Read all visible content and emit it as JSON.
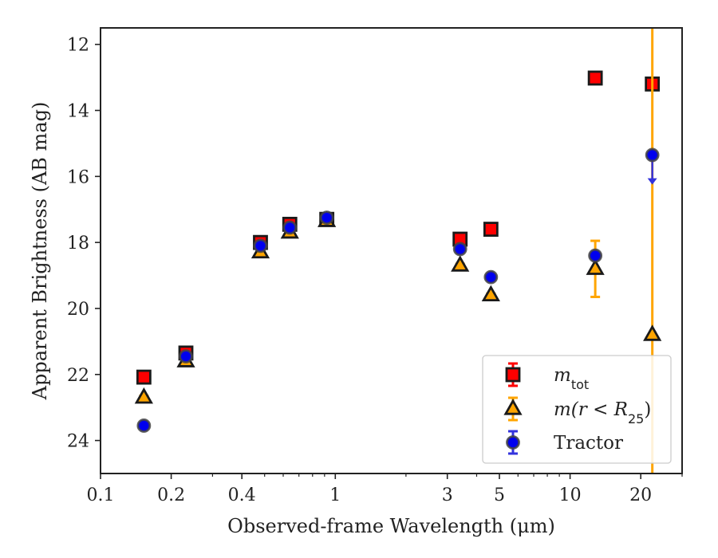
{
  "chart_data": {
    "type": "scatter",
    "title": "",
    "xlabel": "Observed-frame Wavelength (μm)",
    "ylabel": "Apparent Brightness (AB mag)",
    "xscale": "log",
    "xlim": [
      0.1,
      30
    ],
    "ylim": [
      25,
      11.5
    ],
    "y_inverted": true,
    "grid": false,
    "legend_position": "lower-right",
    "xticks": [
      {
        "value": 0.1,
        "label": "0.1"
      },
      {
        "value": 0.2,
        "label": "0.2"
      },
      {
        "value": 0.4,
        "label": "0.4"
      },
      {
        "value": 1,
        "label": "1"
      },
      {
        "value": 3,
        "label": "3"
      },
      {
        "value": 5,
        "label": "5"
      },
      {
        "value": 10,
        "label": "10"
      },
      {
        "value": 20,
        "label": "20"
      }
    ],
    "yticks": [
      {
        "value": 12,
        "label": "12"
      },
      {
        "value": 14,
        "label": "14"
      },
      {
        "value": 16,
        "label": "16"
      },
      {
        "value": 18,
        "label": "18"
      },
      {
        "value": 20,
        "label": "20"
      },
      {
        "value": 22,
        "label": "22"
      },
      {
        "value": 24,
        "label": "24"
      }
    ],
    "series": [
      {
        "name": "m_tot",
        "legend_label": {
          "main": "m",
          "sub": "tot"
        },
        "marker": "square",
        "color": "#ff0000",
        "edge": "#1a1a1a",
        "errcolor": "#ff0000",
        "points": [
          {
            "x": 0.153,
            "y": 22.08,
            "err": 0.05
          },
          {
            "x": 0.231,
            "y": 21.35,
            "err": 0.05
          },
          {
            "x": 0.48,
            "y": 18.0,
            "err": 0.05
          },
          {
            "x": 0.64,
            "y": 17.45,
            "err": 0.05
          },
          {
            "x": 0.92,
            "y": 17.3,
            "err": 0.05
          },
          {
            "x": 3.4,
            "y": 17.9,
            "err": 0.05
          },
          {
            "x": 4.6,
            "y": 17.6,
            "err": 0.05
          },
          {
            "x": 12.8,
            "y": 13.02,
            "err": 0.05
          },
          {
            "x": 22.4,
            "y": 13.2,
            "err": 0.05
          }
        ]
      },
      {
        "name": "m(r < R_25)",
        "legend_label": {
          "pre": "m(r < R",
          "sub": "25",
          "post": ")"
        },
        "marker": "triangle",
        "color": "#ffa500",
        "edge": "#1a1a1a",
        "errcolor": "#ffa500",
        "points": [
          {
            "x": 0.153,
            "y": 22.7,
            "err": 0.05
          },
          {
            "x": 0.231,
            "y": 21.6,
            "err": 0.05
          },
          {
            "x": 0.48,
            "y": 18.3,
            "err": 0.05
          },
          {
            "x": 0.64,
            "y": 17.7,
            "err": 0.05
          },
          {
            "x": 0.92,
            "y": 17.35,
            "err": 0.05
          },
          {
            "x": 3.4,
            "y": 18.7,
            "err": 0.05
          },
          {
            "x": 4.6,
            "y": 19.6,
            "err": 0.05
          },
          {
            "x": 12.8,
            "y": 18.8,
            "err": 0.85
          },
          {
            "x": 22.4,
            "y": 20.8,
            "err": 20
          }
        ]
      },
      {
        "name": "Tractor",
        "legend_label": {
          "main": "Tractor"
        },
        "marker": "circle",
        "color": "#0000ee",
        "edge": "#444444",
        "errcolor": "#3333dd",
        "points": [
          {
            "x": 0.153,
            "y": 23.55,
            "err": 0.05
          },
          {
            "x": 0.231,
            "y": 21.45,
            "err": 0.05
          },
          {
            "x": 0.48,
            "y": 18.1,
            "err": 0.05
          },
          {
            "x": 0.64,
            "y": 17.55,
            "err": 0.05
          },
          {
            "x": 0.92,
            "y": 17.25,
            "err": 0.05
          },
          {
            "x": 3.4,
            "y": 18.2,
            "err": 0.05
          },
          {
            "x": 4.6,
            "y": 19.05,
            "err": 0.05
          },
          {
            "x": 12.8,
            "y": 18.4,
            "err": 0.05
          },
          {
            "x": 22.4,
            "y": 15.35,
            "err": 0.05,
            "upper_limit_to": 16.2
          }
        ]
      }
    ]
  }
}
